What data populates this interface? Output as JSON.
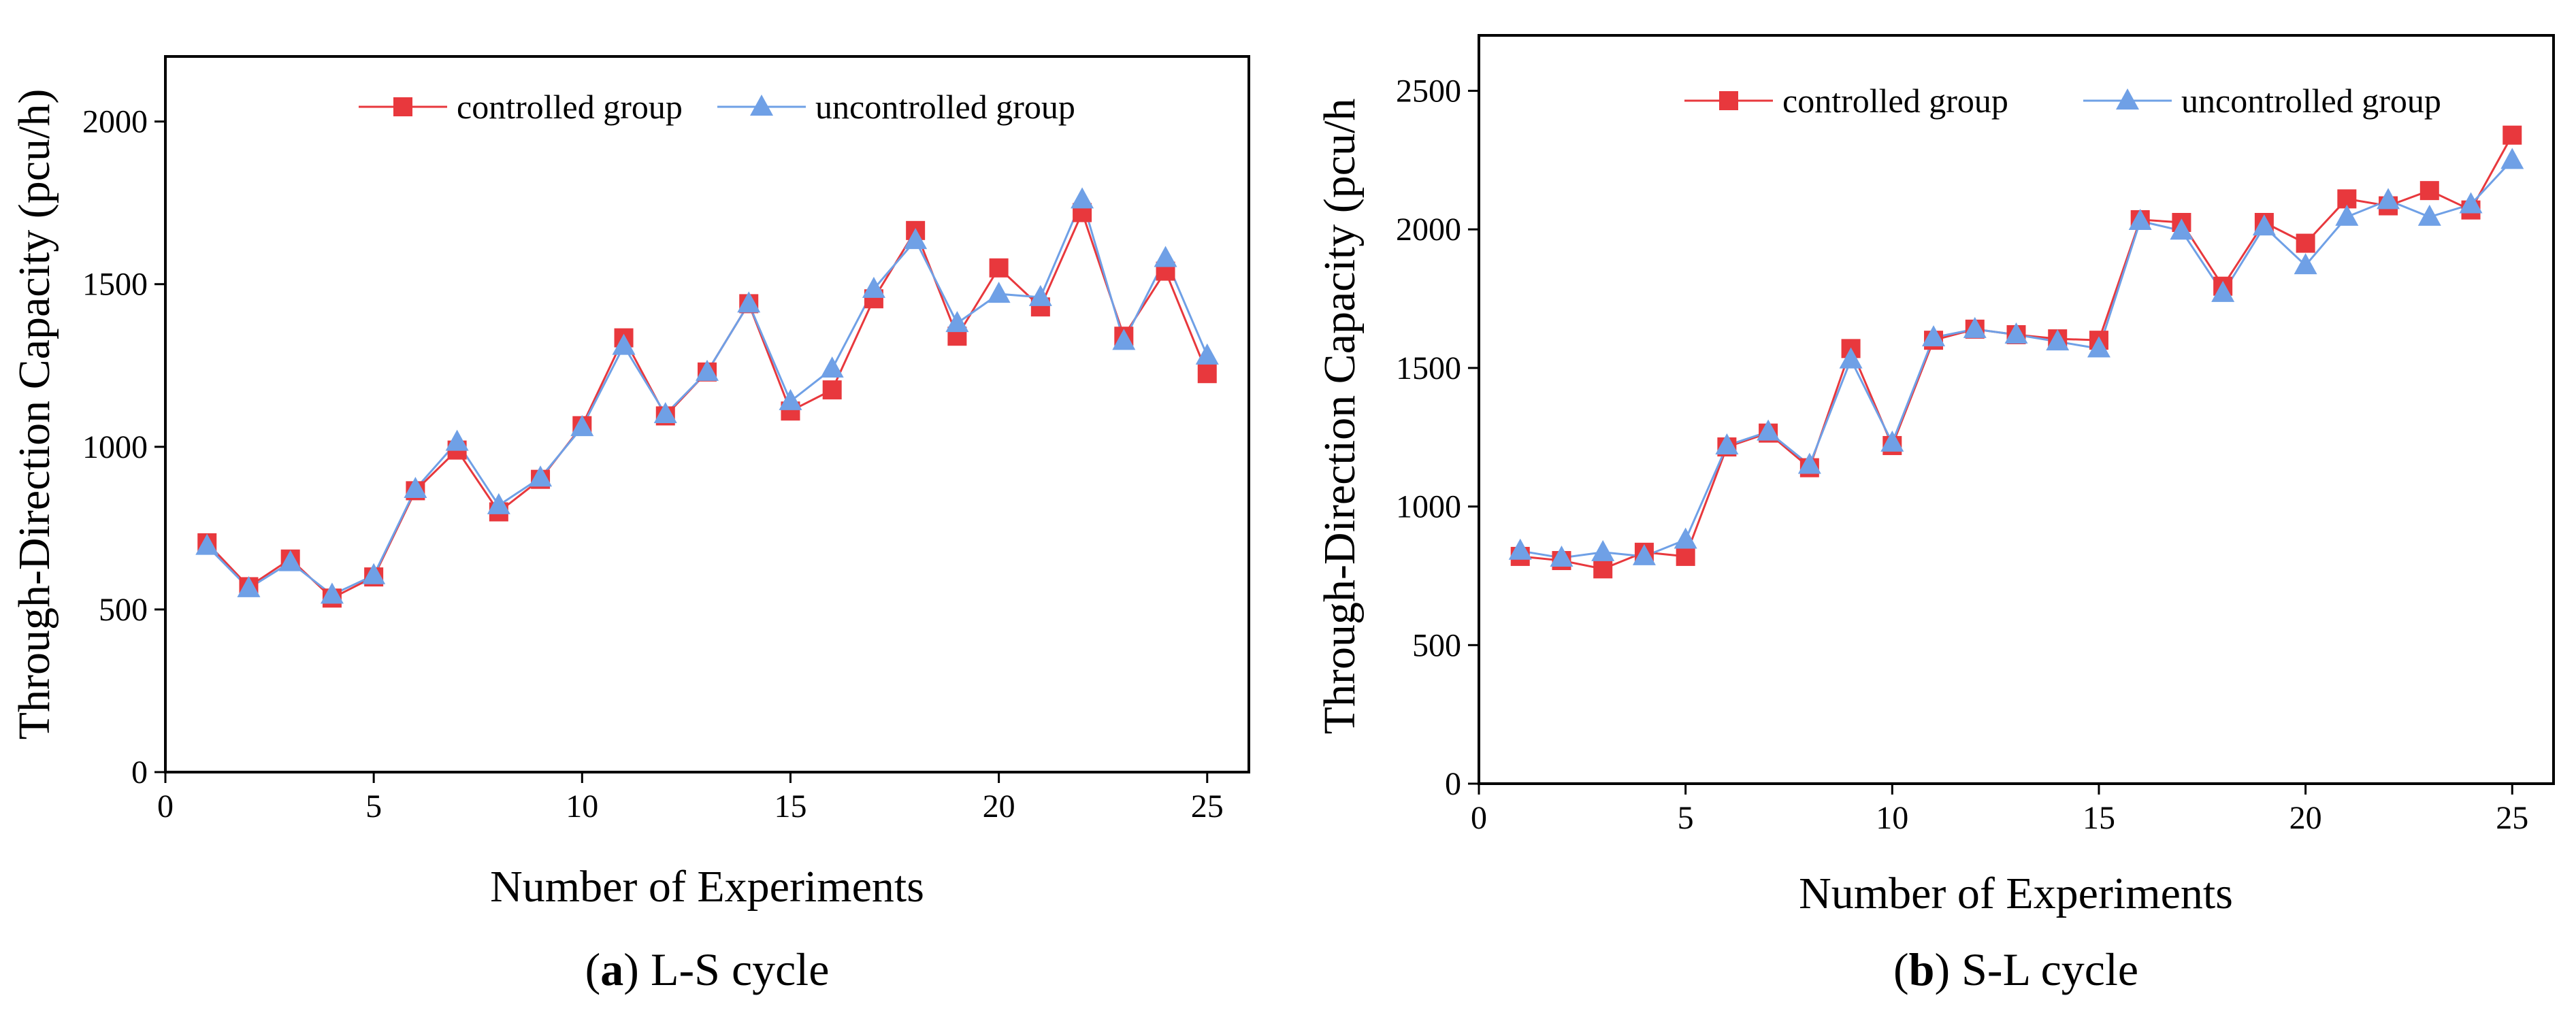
{
  "chart_data": [
    {
      "type": "line",
      "caption_label": "a",
      "caption_text": " L-S cycle",
      "xlabel": "Number of Experiments",
      "ylabel": "Through-Direction Capacity (pcu/h)",
      "xlim": [
        0,
        26
      ],
      "ylim": [
        0,
        2200
      ],
      "xticks": [
        0,
        5,
        10,
        15,
        20,
        25
      ],
      "yticks": [
        0,
        500,
        1000,
        1500,
        2000
      ],
      "legend_position": "top-center",
      "x": [
        1,
        2,
        3,
        4,
        5,
        6,
        7,
        8,
        9,
        10,
        11,
        12,
        13,
        14,
        15,
        16,
        17,
        18,
        19,
        20,
        21,
        22,
        23,
        24,
        25
      ],
      "series": [
        {
          "name": "controlled group",
          "color": "#e8383d",
          "marker": "square",
          "values": [
            705,
            570,
            655,
            535,
            600,
            865,
            990,
            800,
            900,
            1065,
            1335,
            1095,
            1230,
            1440,
            1110,
            1175,
            1455,
            1665,
            1340,
            1550,
            1430,
            1720,
            1340,
            1540,
            1225
          ]
        },
        {
          "name": "uncontrolled group",
          "color": "#6fa0e6",
          "marker": "triangle",
          "values": [
            695,
            565,
            645,
            545,
            605,
            870,
            1015,
            820,
            905,
            1060,
            1310,
            1100,
            1230,
            1440,
            1140,
            1240,
            1485,
            1635,
            1380,
            1470,
            1460,
            1760,
            1325,
            1580,
            1280
          ]
        }
      ]
    },
    {
      "type": "line",
      "caption_label": "b",
      "caption_text": " S-L cycle",
      "xlabel": "Number of Experiments",
      "ylabel": "Through-Direction Capacity (pcu/h",
      "xlim": [
        0,
        26
      ],
      "ylim": [
        0,
        2700
      ],
      "xticks": [
        0,
        5,
        10,
        15,
        20,
        25
      ],
      "yticks": [
        0,
        500,
        1000,
        1500,
        2000,
        2500
      ],
      "legend_position": "top-right",
      "x": [
        1,
        2,
        3,
        4,
        5,
        6,
        7,
        8,
        9,
        10,
        11,
        12,
        13,
        14,
        15,
        16,
        17,
        18,
        19,
        20,
        21,
        22,
        23,
        24,
        25
      ],
      "series": [
        {
          "name": "controlled group",
          "color": "#e8383d",
          "marker": "square",
          "values": [
            820,
            805,
            775,
            835,
            820,
            1215,
            1265,
            1140,
            1570,
            1220,
            1600,
            1640,
            1620,
            1605,
            1600,
            2035,
            2025,
            1795,
            2025,
            1950,
            2110,
            2085,
            2140,
            2070,
            2340
          ]
        },
        {
          "name": "uncontrolled group",
          "color": "#6fa0e6",
          "marker": "triangle",
          "values": [
            840,
            815,
            835,
            820,
            880,
            1220,
            1270,
            1150,
            1530,
            1230,
            1610,
            1640,
            1620,
            1595,
            1570,
            2030,
            1995,
            1770,
            2010,
            1870,
            2045,
            2105,
            2045,
            2090,
            2250
          ]
        }
      ]
    }
  ]
}
